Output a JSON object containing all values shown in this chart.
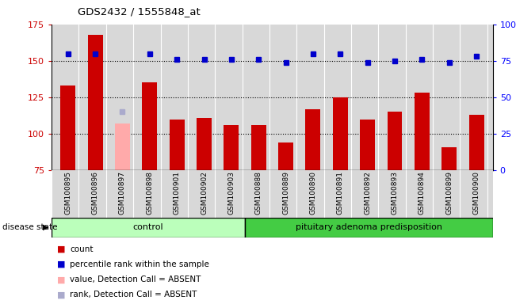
{
  "title": "GDS2432 / 1555848_at",
  "samples": [
    "GSM100895",
    "GSM100896",
    "GSM100897",
    "GSM100898",
    "GSM100901",
    "GSM100902",
    "GSM100903",
    "GSM100888",
    "GSM100889",
    "GSM100890",
    "GSM100891",
    "GSM100892",
    "GSM100893",
    "GSM100894",
    "GSM100899",
    "GSM100900"
  ],
  "bar_values": [
    133,
    168,
    107,
    135,
    110,
    111,
    106,
    106,
    94,
    117,
    125,
    110,
    115,
    128,
    91,
    113
  ],
  "bar_absent": [
    false,
    false,
    true,
    false,
    false,
    false,
    false,
    false,
    false,
    false,
    false,
    false,
    false,
    false,
    false,
    false
  ],
  "rank_values": [
    80,
    80,
    40,
    80,
    76,
    76,
    76,
    76,
    74,
    80,
    80,
    74,
    75,
    76,
    74,
    78
  ],
  "rank_absent": [
    false,
    false,
    true,
    false,
    false,
    false,
    false,
    false,
    false,
    false,
    false,
    false,
    false,
    false,
    false,
    false
  ],
  "bar_color_normal": "#cc0000",
  "bar_color_absent": "#ffaaaa",
  "rank_color_normal": "#0000cc",
  "rank_color_absent": "#aaaacc",
  "ylim_left": [
    75,
    175
  ],
  "ylim_right": [
    0,
    100
  ],
  "yticks_left": [
    75,
    100,
    125,
    150,
    175
  ],
  "yticks_right": [
    0,
    25,
    50,
    75,
    100
  ],
  "yticklabels_right": [
    "0",
    "25",
    "50",
    "75",
    "100%"
  ],
  "control_label": "control",
  "disease_label": "pituitary adenoma predisposition",
  "disease_state_label": "disease state",
  "n_control": 7,
  "n_disease": 9,
  "control_color": "#bbffbb",
  "disease_color": "#44cc44",
  "label_bar_normal": "count",
  "label_bar_absent": "value, Detection Call = ABSENT",
  "label_rank_normal": "percentile rank within the sample",
  "label_rank_absent": "rank, Detection Call = ABSENT",
  "bg_color": "#d8d8d8",
  "dotted_lines": [
    100,
    125,
    150
  ]
}
